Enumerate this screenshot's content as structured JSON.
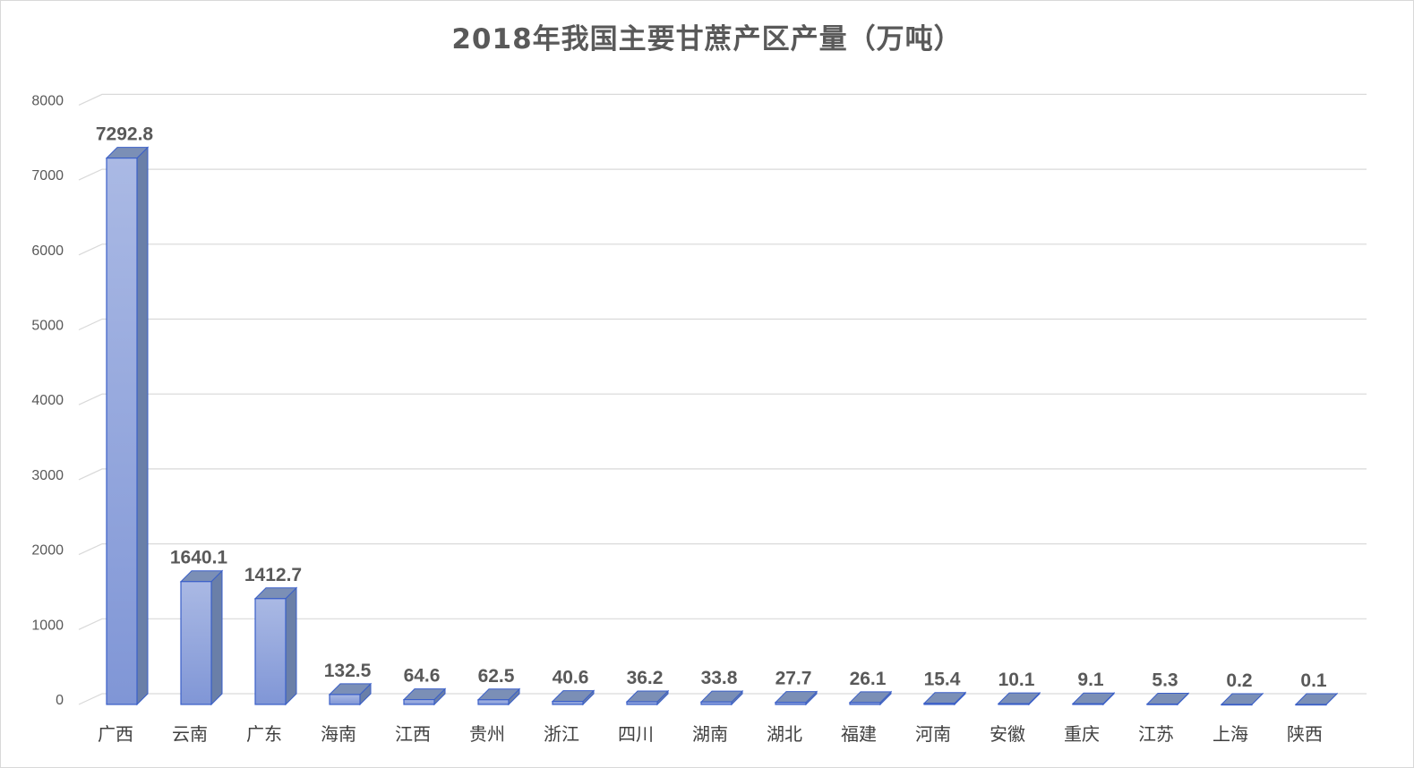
{
  "chart_data": {
    "type": "bar",
    "title": "2018年我国主要甘蔗产区产量（万吨）",
    "xlabel": "",
    "ylabel": "",
    "ylim": [
      0,
      8000
    ],
    "yticks": [
      0,
      1000,
      2000,
      3000,
      4000,
      5000,
      6000,
      7000,
      8000
    ],
    "grid": true,
    "legend": "none",
    "bar_style": "3d-column",
    "colors": {
      "bar_top": "#aab9e4",
      "bar_bottom": "#8096d6",
      "bar_edge": "#3a5fc8",
      "bar_side": "#6a7fa8",
      "bar_cap": "#7b8fb6",
      "grid": "#d9d9d9",
      "text": "#595959"
    },
    "categories": [
      "广西",
      "云南",
      "广东",
      "海南",
      "江西",
      "贵州",
      "浙江",
      "四川",
      "湖南",
      "湖北",
      "福建",
      "河南",
      "安徽",
      "重庆",
      "江苏",
      "上海",
      "陕西"
    ],
    "values": [
      7292.8,
      1640.1,
      1412.7,
      132.5,
      64.6,
      62.5,
      40.6,
      36.2,
      33.8,
      27.7,
      26.1,
      15.4,
      10.1,
      9.1,
      5.3,
      0.2,
      0.1
    ],
    "data_labels": [
      "7292.8",
      "1640.1",
      "1412.7",
      "132.5",
      "64.6",
      "62.5",
      "40.6",
      "36.2",
      "33.8",
      "27.7",
      "26.1",
      "15.4",
      "10.1",
      "9.1",
      "5.3",
      "0.2",
      "0.1"
    ]
  }
}
